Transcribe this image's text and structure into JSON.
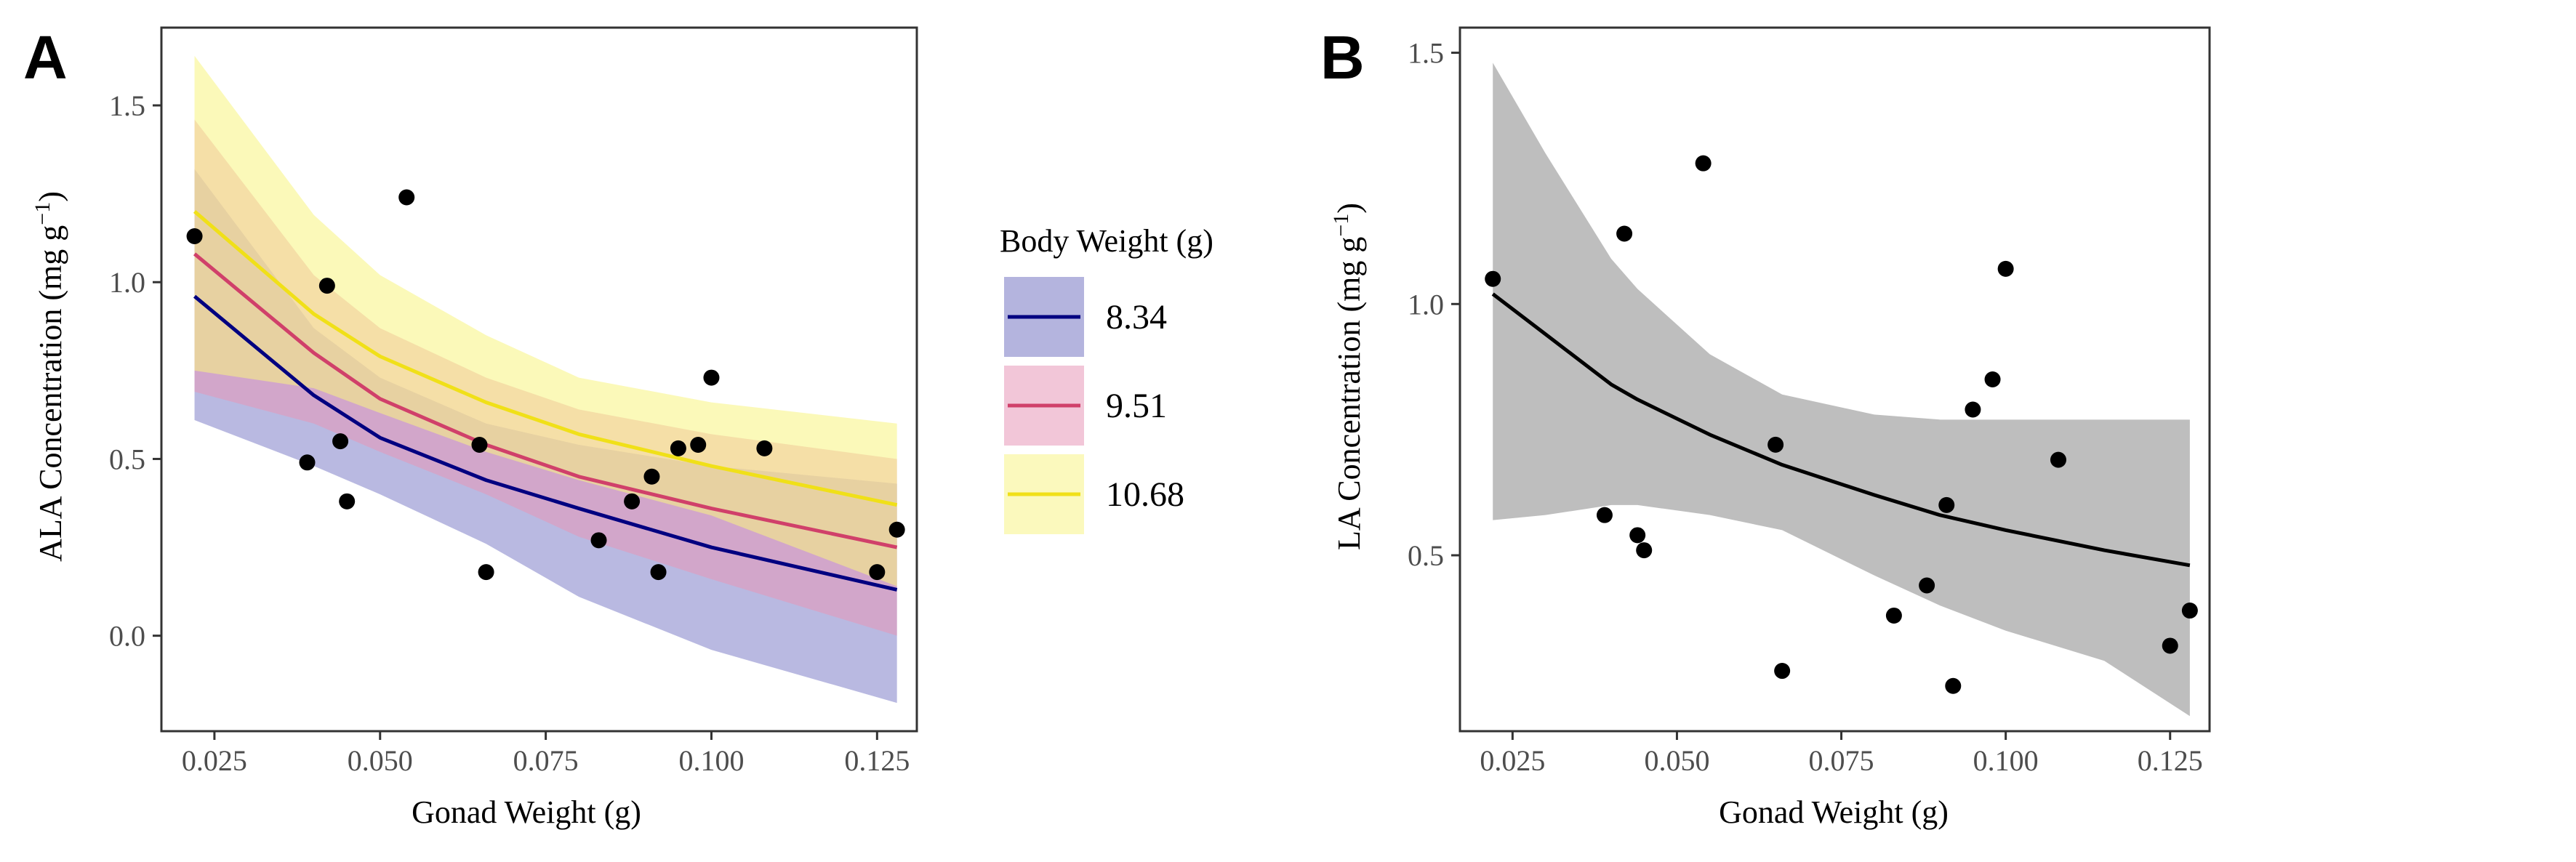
{
  "chart_data": [
    {
      "panel": "A",
      "type": "line",
      "xlabel": "Gonad Weight (g)",
      "ylabel": "ALA Concentration (mg g",
      "ylabel_sup": "−1",
      "ylabel_close": ")",
      "xlim": [
        0.017,
        0.131
      ],
      "ylim": [
        -0.27,
        1.72
      ],
      "xticks": [
        0.025,
        0.05,
        0.075,
        0.1,
        0.125
      ],
      "xtick_labels": [
        "0.025",
        "0.050",
        "0.075",
        "0.100",
        "0.125"
      ],
      "yticks": [
        0,
        0.5,
        1,
        1.5
      ],
      "ytick_labels": [
        "0.0",
        "0.5",
        "1.0",
        "1.5"
      ],
      "grid": false,
      "legend": {
        "title": "Body Weight (g)",
        "placement": "right",
        "entries": [
          "8.34",
          "9.51",
          "10.68"
        ]
      },
      "series": [
        {
          "name": "8.34",
          "line_color": "#000080",
          "fill_color": "#8080c8",
          "x": [
            0.022,
            0.04,
            0.05,
            0.066,
            0.08,
            0.1,
            0.128
          ],
          "values": [
            0.96,
            0.68,
            0.56,
            0.44,
            0.36,
            0.25,
            0.13
          ],
          "lower": [
            0.61,
            0.48,
            0.4,
            0.26,
            0.11,
            -0.04,
            -0.19
          ],
          "upper": [
            1.32,
            0.87,
            0.73,
            0.6,
            0.54,
            0.48,
            0.43
          ]
        },
        {
          "name": "9.51",
          "line_color": "#d0406a",
          "fill_color": "#e898b8",
          "x": [
            0.022,
            0.04,
            0.05,
            0.066,
            0.08,
            0.1,
            0.128
          ],
          "values": [
            1.08,
            0.8,
            0.67,
            0.54,
            0.45,
            0.36,
            0.25
          ],
          "lower": [
            0.69,
            0.6,
            0.52,
            0.4,
            0.28,
            0.16,
            0.0
          ],
          "upper": [
            1.46,
            1.02,
            0.87,
            0.73,
            0.64,
            0.57,
            0.5
          ]
        },
        {
          "name": "10.68",
          "line_color": "#f0e018",
          "fill_color": "#f8f480",
          "x": [
            0.022,
            0.04,
            0.05,
            0.066,
            0.08,
            0.1,
            0.128
          ],
          "values": [
            1.2,
            0.91,
            0.79,
            0.66,
            0.57,
            0.48,
            0.37
          ],
          "lower": [
            0.75,
            0.7,
            0.63,
            0.52,
            0.44,
            0.34,
            0.14
          ],
          "upper": [
            1.64,
            1.19,
            1.02,
            0.85,
            0.73,
            0.66,
            0.6
          ]
        }
      ],
      "points": {
        "x": [
          0.022,
          0.039,
          0.042,
          0.044,
          0.045,
          0.054,
          0.065,
          0.066,
          0.083,
          0.088,
          0.091,
          0.092,
          0.095,
          0.098,
          0.1,
          0.108,
          0.125,
          0.128
        ],
        "y": [
          1.13,
          0.49,
          0.99,
          0.55,
          0.38,
          1.24,
          0.54,
          0.18,
          0.27,
          0.38,
          0.45,
          0.18,
          0.53,
          0.54,
          0.73,
          0.53,
          0.18,
          0.3
        ]
      }
    },
    {
      "panel": "B",
      "type": "line",
      "xlabel": "Gonad Weight (g)",
      "ylabel": "LA Concentration (mg g",
      "ylabel_sup": "−1",
      "ylabel_close": ")",
      "xlim": [
        0.017,
        0.131
      ],
      "ylim": [
        0.15,
        1.55
      ],
      "xticks": [
        0.025,
        0.05,
        0.075,
        0.1,
        0.125
      ],
      "xtick_labels": [
        "0.025",
        "0.050",
        "0.075",
        "0.100",
        "0.125"
      ],
      "yticks": [
        0.5,
        1,
        1.5
      ],
      "ytick_labels": [
        "0.5",
        "1.0",
        "1.5"
      ],
      "grid": false,
      "series": [
        {
          "line_color": "#000000",
          "fill_color": "#bebebe",
          "x": [
            0.022,
            0.03,
            0.04,
            0.044,
            0.055,
            0.066,
            0.08,
            0.09,
            0.1,
            0.115,
            0.128
          ],
          "values": [
            1.02,
            0.94,
            0.84,
            0.81,
            0.74,
            0.68,
            0.62,
            0.58,
            0.55,
            0.51,
            0.48
          ],
          "lower": [
            0.57,
            0.58,
            0.6,
            0.6,
            0.58,
            0.55,
            0.46,
            0.4,
            0.35,
            0.29,
            0.18
          ],
          "upper": [
            1.48,
            1.3,
            1.09,
            1.03,
            0.9,
            0.82,
            0.78,
            0.77,
            0.77,
            0.77,
            0.77
          ]
        }
      ],
      "points": {
        "x": [
          0.022,
          0.039,
          0.042,
          0.044,
          0.045,
          0.054,
          0.065,
          0.066,
          0.083,
          0.088,
          0.091,
          0.092,
          0.095,
          0.098,
          0.1,
          0.108,
          0.125,
          0.128
        ],
        "y": [
          1.05,
          0.58,
          1.14,
          0.54,
          0.51,
          1.28,
          0.72,
          0.27,
          0.38,
          0.44,
          0.6,
          0.24,
          0.79,
          0.85,
          1.07,
          0.69,
          0.32,
          0.39
        ]
      }
    }
  ]
}
